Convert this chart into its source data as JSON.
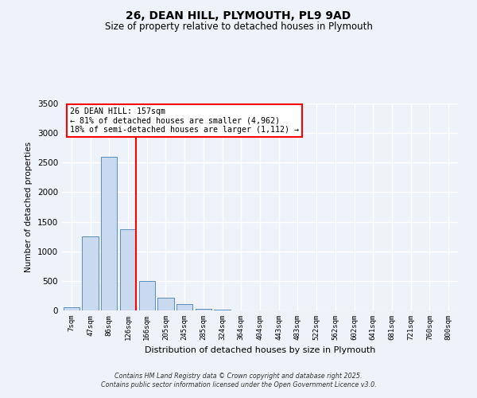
{
  "title": "26, DEAN HILL, PLYMOUTH, PL9 9AD",
  "subtitle": "Size of property relative to detached houses in Plymouth",
  "xlabel": "Distribution of detached houses by size in Plymouth",
  "ylabel": "Number of detached properties",
  "categories": [
    "7sqm",
    "47sqm",
    "86sqm",
    "126sqm",
    "166sqm",
    "205sqm",
    "245sqm",
    "285sqm",
    "324sqm",
    "364sqm",
    "404sqm",
    "443sqm",
    "483sqm",
    "522sqm",
    "562sqm",
    "602sqm",
    "641sqm",
    "681sqm",
    "721sqm",
    "760sqm",
    "800sqm"
  ],
  "bar_values": [
    50,
    1250,
    2600,
    1370,
    500,
    210,
    110,
    30,
    10,
    5,
    0,
    0,
    0,
    0,
    0,
    0,
    0,
    0,
    0,
    0,
    0
  ],
  "bar_color": "#c9d9f0",
  "bar_edge_color": "#5b8db8",
  "vline_color": "red",
  "ylim": [
    0,
    3500
  ],
  "yticks": [
    0,
    500,
    1000,
    1500,
    2000,
    2500,
    3000,
    3500
  ],
  "annotation_title": "26 DEAN HILL: 157sqm",
  "annotation_line1": "← 81% of detached houses are smaller (4,962)",
  "annotation_line2": "18% of semi-detached houses are larger (1,112) →",
  "annotation_box_color": "#ffffff",
  "annotation_box_edge": "red",
  "footer1": "Contains HM Land Registry data © Crown copyright and database right 2025.",
  "footer2": "Contains public sector information licensed under the Open Government Licence v3.0.",
  "background_color": "#eef3fb",
  "grid_color": "#ffffff"
}
